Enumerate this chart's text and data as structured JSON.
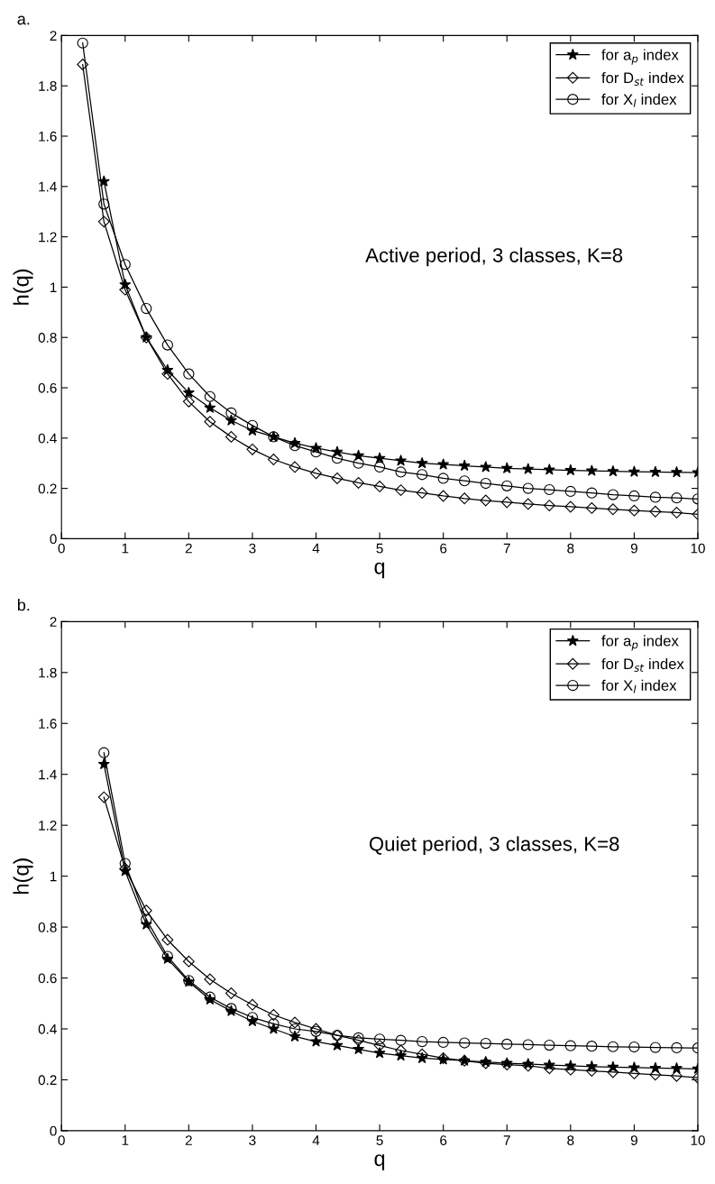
{
  "chart_data": [
    {
      "type": "line",
      "title": "a.",
      "xlabel": "q",
      "ylabel": "h(q)",
      "annotations": [
        "Active period, 3 classes, K=8"
      ],
      "x": [
        0.333,
        0.667,
        1,
        1.333,
        1.667,
        2,
        2.333,
        2.667,
        3,
        3.333,
        3.667,
        4,
        4.333,
        4.667,
        5,
        5.333,
        5.667,
        6,
        6.333,
        6.667,
        7,
        7.333,
        7.667,
        8,
        8.333,
        8.667,
        9,
        9.333,
        9.667,
        10
      ],
      "series": [
        {
          "name": "for a$_{p}$ index",
          "color": "#000000",
          "marker": "star",
          "values": [
            null,
            1.42,
            1.01,
            0.8,
            0.67,
            0.58,
            0.52,
            0.47,
            0.43,
            0.405,
            0.38,
            0.36,
            0.345,
            0.33,
            0.32,
            0.31,
            0.3,
            0.295,
            0.29,
            0.285,
            0.28,
            0.277,
            0.274,
            0.272,
            0.27,
            0.268,
            0.266,
            0.265,
            0.264,
            0.263
          ]
        },
        {
          "name": "for D$_{st}$ index",
          "color": "#000000",
          "marker": "diamond",
          "values": [
            1.885,
            1.26,
            0.99,
            0.8,
            0.655,
            0.545,
            0.465,
            0.405,
            0.355,
            0.315,
            0.285,
            0.26,
            0.24,
            0.222,
            0.208,
            0.193,
            0.182,
            0.17,
            0.16,
            0.152,
            0.145,
            0.138,
            0.132,
            0.127,
            0.122,
            0.117,
            0.112,
            0.108,
            0.104,
            0.097
          ]
        },
        {
          "name": "for X$_{l}$ index",
          "color": "#000000",
          "marker": "circle",
          "values": [
            1.97,
            1.33,
            1.09,
            0.915,
            0.77,
            0.655,
            0.565,
            0.5,
            0.45,
            0.405,
            0.37,
            0.345,
            0.32,
            0.3,
            0.285,
            0.265,
            0.255,
            0.24,
            0.23,
            0.22,
            0.21,
            0.2,
            0.195,
            0.188,
            0.182,
            0.175,
            0.17,
            0.165,
            0.162,
            0.158
          ]
        }
      ],
      "xlim": [
        0,
        10
      ],
      "ylim": [
        0,
        2
      ],
      "xticks": [
        0,
        1,
        2,
        3,
        4,
        5,
        6,
        7,
        8,
        9,
        10
      ],
      "yticks": [
        0,
        0.2,
        0.4,
        0.6,
        0.8,
        1,
        1.2,
        1.4,
        1.6,
        1.8,
        2
      ],
      "legend": "top right",
      "grid": false,
      "line_style": "solid"
    },
    {
      "type": "line",
      "title": "b.",
      "xlabel": "q",
      "ylabel": "h(q)",
      "annotations": [
        "Quiet period, 3 classes, K=8"
      ],
      "x": [
        0.667,
        1,
        1.333,
        1.667,
        2,
        2.333,
        2.667,
        3,
        3.333,
        3.667,
        4,
        4.333,
        4.667,
        5,
        5.333,
        5.667,
        6,
        6.333,
        6.667,
        7,
        7.333,
        7.667,
        8,
        8.333,
        8.667,
        9,
        9.333,
        9.667,
        10
      ],
      "series": [
        {
          "name": "for a$_{p}$ index",
          "color": "#000000",
          "marker": "star",
          "values": [
            1.44,
            1.02,
            0.81,
            0.675,
            0.585,
            0.515,
            0.47,
            0.43,
            0.4,
            0.37,
            0.35,
            0.335,
            0.32,
            0.305,
            0.295,
            0.285,
            0.28,
            0.275,
            0.27,
            0.265,
            0.262,
            0.258,
            0.255,
            0.252,
            0.25,
            0.248,
            0.246,
            0.245,
            0.243
          ]
        },
        {
          "name": "for D$_{st}$ index",
          "color": "#000000",
          "marker": "diamond",
          "values": [
            1.31,
            1.03,
            0.865,
            0.75,
            0.665,
            0.595,
            0.54,
            0.495,
            0.455,
            0.425,
            0.4,
            0.375,
            0.355,
            0.335,
            0.315,
            0.3,
            0.285,
            0.275,
            0.265,
            0.26,
            0.255,
            0.245,
            0.24,
            0.235,
            0.23,
            0.225,
            0.22,
            0.215,
            0.208
          ]
        },
        {
          "name": "for X$_{l}$ index",
          "color": "#000000",
          "marker": "circle",
          "values": [
            1.485,
            1.05,
            0.83,
            0.685,
            0.59,
            0.525,
            0.48,
            0.445,
            0.42,
            0.4,
            0.39,
            0.375,
            0.365,
            0.36,
            0.355,
            0.35,
            0.347,
            0.345,
            0.343,
            0.34,
            0.338,
            0.336,
            0.334,
            0.332,
            0.33,
            0.329,
            0.327,
            0.326,
            0.325
          ]
        }
      ],
      "xlim": [
        0,
        10
      ],
      "ylim": [
        0,
        2
      ],
      "xticks": [
        0,
        1,
        2,
        3,
        4,
        5,
        6,
        7,
        8,
        9,
        10
      ],
      "yticks": [
        0,
        0.2,
        0.4,
        0.6,
        0.8,
        1,
        1.2,
        1.4,
        1.6,
        1.8,
        2
      ],
      "legend": "top right",
      "grid": false,
      "line_style": "solid"
    }
  ]
}
